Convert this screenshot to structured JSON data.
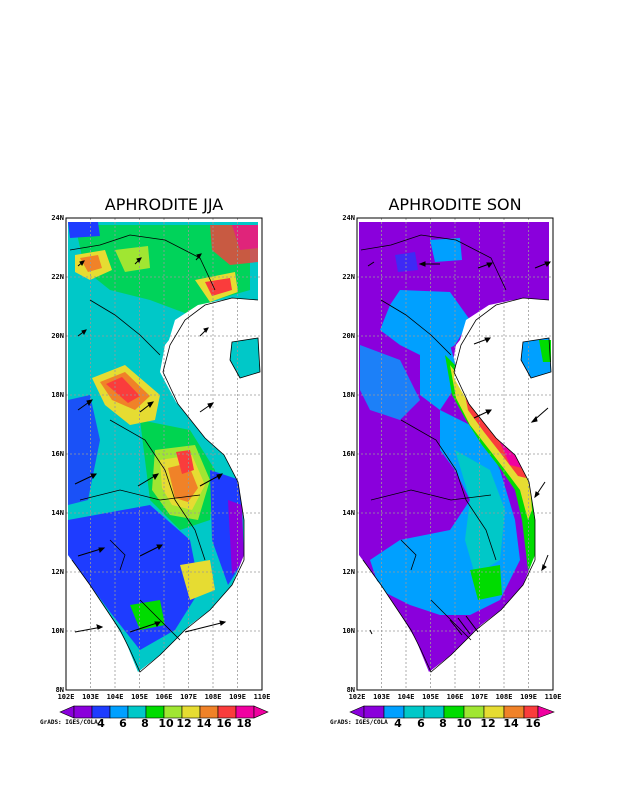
{
  "panels": [
    {
      "id": "jja",
      "title": "APHRODITE JJA",
      "lon_ticks": [
        "102E",
        "103E",
        "104E",
        "105E",
        "106E",
        "107E",
        "108E",
        "109E",
        "110E"
      ],
      "lat_ticks": [
        "8N",
        "10N",
        "12N",
        "14N",
        "16N",
        "18N",
        "20N",
        "22N",
        "24N"
      ],
      "colorbar_levels": [
        "4",
        "6",
        "8",
        "10",
        "12",
        "14",
        "16",
        "18"
      ],
      "colorbar_colors": [
        "#8a00dc",
        "#1e3cff",
        "#00a0ff",
        "#00c8c8",
        "#00dc00",
        "#a0e632",
        "#e6dc32",
        "#f08228",
        "#fa3c3c",
        "#f000a0"
      ],
      "credit": "GrADS: IGES/COLA"
    },
    {
      "id": "son",
      "title": "APHRODITE SON",
      "lon_ticks": [
        "102E",
        "103E",
        "104E",
        "105E",
        "106E",
        "107E",
        "108E",
        "109E",
        "110E"
      ],
      "lat_ticks": [
        "8N",
        "10N",
        "12N",
        "14N",
        "16N",
        "18N",
        "20N",
        "22N",
        "24N"
      ],
      "colorbar_levels": [
        "4",
        "6",
        "8",
        "10",
        "12",
        "14",
        "16"
      ],
      "colorbar_colors": [
        "#8a00dc",
        "#00a0ff",
        "#00c8c8",
        "#00dc00",
        "#a0e632",
        "#e6dc32",
        "#f08228",
        "#fa3c3c",
        "#f000a0"
      ],
      "credit": "GrADS: IGES/COLA"
    }
  ]
}
